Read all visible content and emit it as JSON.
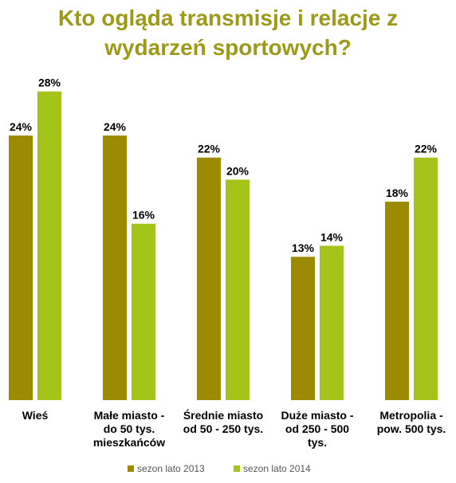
{
  "chart_data": {
    "type": "bar",
    "title_lines": [
      "Kto ogląda transmisje i relacje z",
      "wydarzeń sportowych?"
    ],
    "categories": [
      [
        "Wieś"
      ],
      [
        "Małe miasto -",
        "do 50 tys.",
        "mieszkańców"
      ],
      [
        "Średnie miasto",
        "od 50 - 250 tys."
      ],
      [
        "Duże miasto -",
        "od 250 - 500",
        "tys."
      ],
      [
        "Metropolia -",
        "pow. 500 tys."
      ]
    ],
    "series": [
      {
        "name": "sezon lato 2013",
        "color": "#9c8a00",
        "values": [
          24,
          24,
          22,
          13,
          18
        ],
        "labels": [
          "24%",
          "24%",
          "22%",
          "13%",
          "18%"
        ]
      },
      {
        "name": "sezon lato 2014",
        "color": "#a5c419",
        "values": [
          28,
          16,
          20,
          14,
          22
        ],
        "labels": [
          "28%",
          "16%",
          "20%",
          "14%",
          "22%"
        ]
      }
    ],
    "ylim": [
      0,
      29.5
    ],
    "grid": false,
    "legend": "bottom"
  },
  "colors": {
    "title": "#9c9a18"
  }
}
